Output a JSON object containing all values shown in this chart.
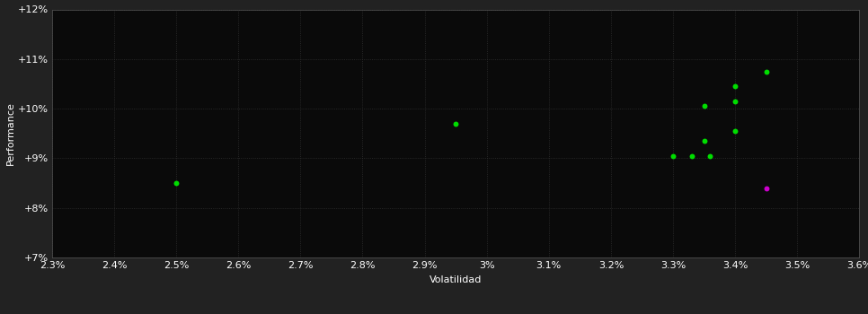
{
  "background_color": "#222222",
  "plot_bg_color": "#0a0a0a",
  "grid_color": "#303030",
  "dot_color_green": "#00dd00",
  "dot_color_magenta": "#cc00cc",
  "xlabel": "Volatilidad",
  "ylabel": "Performance",
  "xlim": [
    0.023,
    0.036
  ],
  "ylim": [
    0.07,
    0.12
  ],
  "xticks": [
    0.023,
    0.024,
    0.025,
    0.026,
    0.027,
    0.028,
    0.029,
    0.03,
    0.031,
    0.032,
    0.033,
    0.034,
    0.035,
    0.036
  ],
  "yticks": [
    0.07,
    0.08,
    0.09,
    0.1,
    0.11,
    0.12
  ],
  "green_points": [
    [
      0.025,
      0.085
    ],
    [
      0.0295,
      0.097
    ],
    [
      0.033,
      0.0905
    ],
    [
      0.0333,
      0.0905
    ],
    [
      0.0336,
      0.0905
    ],
    [
      0.0335,
      0.0935
    ],
    [
      0.034,
      0.0955
    ],
    [
      0.0335,
      0.1005
    ],
    [
      0.034,
      0.1015
    ],
    [
      0.034,
      0.1045
    ],
    [
      0.0345,
      0.1075
    ]
  ],
  "magenta_points": [
    [
      0.0345,
      0.084
    ]
  ],
  "dot_size": 18,
  "label_fontsize": 8,
  "tick_fontsize": 8
}
